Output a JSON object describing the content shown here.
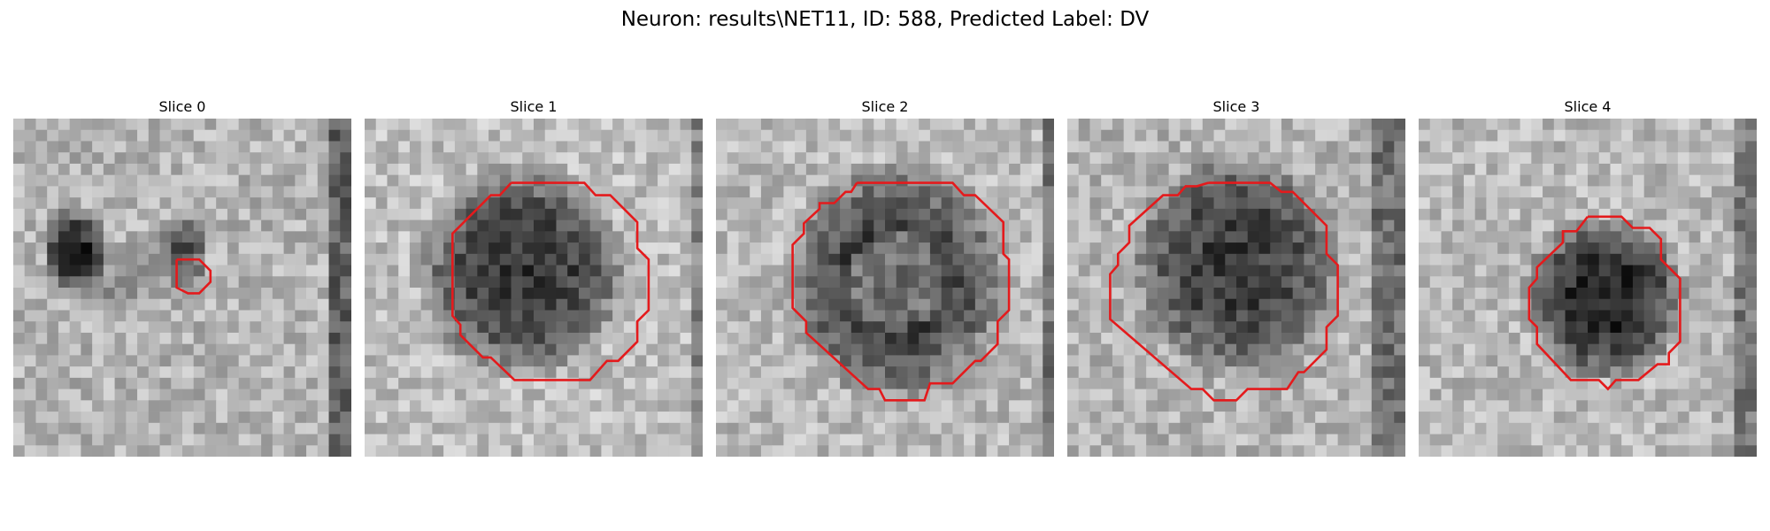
{
  "figure": {
    "title": "Neuron: results\\NET11, ID: 588, Predicted Label: DV",
    "contour_color": "#e41a1c"
  },
  "panels": [
    {
      "title": "Slice 0",
      "image": "grayscale microscopy patch with two small dark blobs on the left",
      "contour": "small red contour near center-left"
    },
    {
      "title": "Slice 1",
      "image": "grayscale microscopy patch with a large dark round cell",
      "contour": "large red octagonal contour around the cell"
    },
    {
      "title": "Slice 2",
      "image": "grayscale microscopy patch with a large dark ring-shaped cell",
      "contour": "large red octagonal contour around the cell"
    },
    {
      "title": "Slice 3",
      "image": "grayscale microscopy patch with a large dark round cell",
      "contour": "large red octagonal contour around the cell"
    },
    {
      "title": "Slice 4",
      "image": "grayscale microscopy patch with a dark round cell",
      "contour": "medium red octagonal contour around the cell"
    }
  ]
}
